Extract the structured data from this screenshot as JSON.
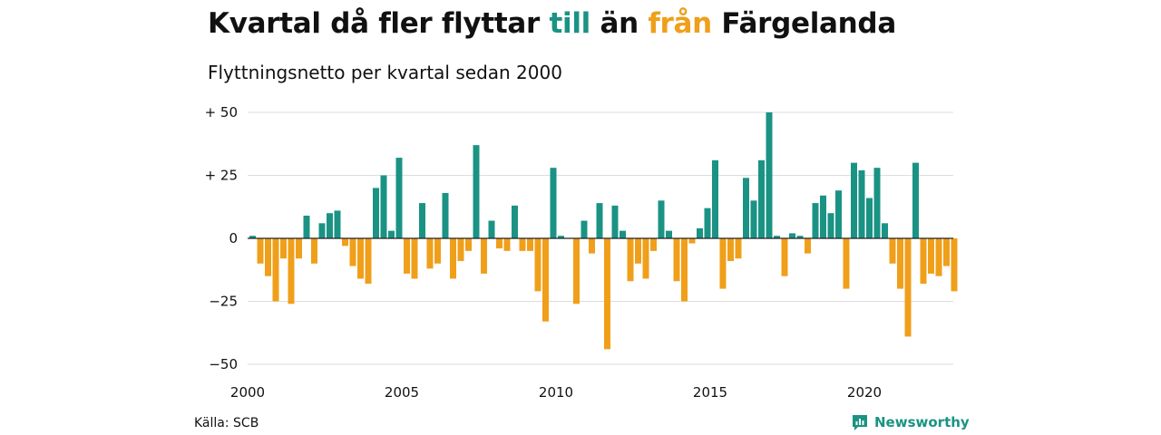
{
  "title": {
    "part1": "Kvartal då fler flyttar ",
    "up_word": "till",
    "part2": " än ",
    "down_word": "från",
    "part3": " Färgelanda"
  },
  "subtitle": "Flyttningsnetto per kvartal sedan 2000",
  "source": "Källa: SCB",
  "brand": "Newsworthy",
  "colors": {
    "positive": "#1a9384",
    "negative": "#f09f1a",
    "grid": "#dddddd",
    "axis": "#222222"
  },
  "chart_data": {
    "type": "bar",
    "x_ticks": [
      "2000",
      "2005",
      "2010",
      "2015",
      "2020"
    ],
    "y_ticks": [
      {
        "value": 50,
        "label": "+ 50"
      },
      {
        "value": 25,
        "label": "+ 25"
      },
      {
        "value": 0,
        "label": "0"
      },
      {
        "value": -25,
        "label": "−25"
      },
      {
        "value": -50,
        "label": "−50"
      }
    ],
    "ylim": [
      -50,
      50
    ],
    "grid": true,
    "start_year": 2000,
    "values": [
      1,
      -10,
      -15,
      -25,
      -8,
      -26,
      -8,
      9,
      -10,
      6,
      10,
      11,
      -3,
      -11,
      -16,
      -18,
      20,
      25,
      3,
      32,
      -14,
      -16,
      14,
      -12,
      -10,
      18,
      -16,
      -9,
      -5,
      37,
      -14,
      7,
      -4,
      -5,
      13,
      -5,
      -5,
      -21,
      -33,
      28,
      1,
      0,
      -26,
      7,
      -6,
      14,
      -44,
      13,
      3,
      -17,
      -10,
      -16,
      -5,
      15,
      3,
      -17,
      -25,
      -2,
      4,
      12,
      31,
      -20,
      -9,
      -8,
      24,
      15,
      31,
      50,
      1,
      -15,
      2,
      1,
      -6,
      14,
      17,
      10,
      19,
      -20,
      30,
      27,
      16,
      28,
      6,
      -10,
      -20,
      -39,
      30,
      -18,
      -14,
      -15,
      -11,
      -21
    ]
  }
}
